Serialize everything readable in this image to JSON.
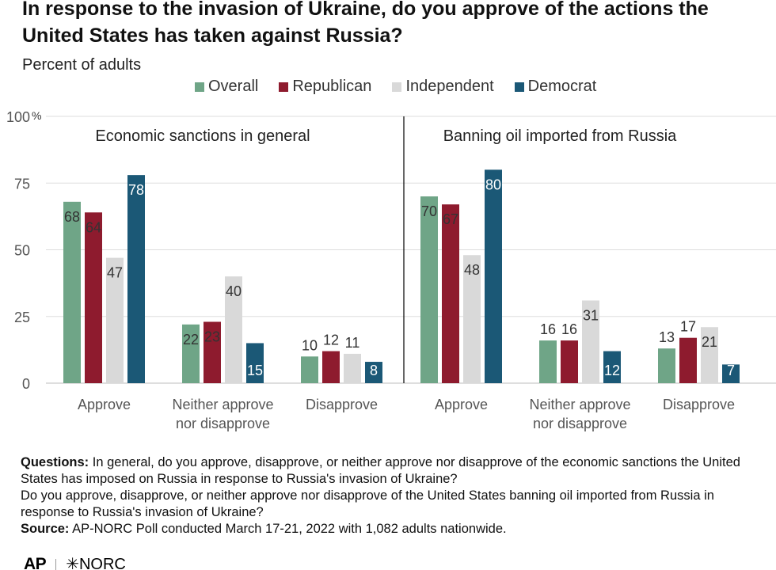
{
  "title": "In response to the invasion of Ukraine, do you approve of the actions the United States has taken against Russia?",
  "subtitle": "Percent of adults",
  "legend": [
    {
      "label": "Overall",
      "color": "#6fa587"
    },
    {
      "label": "Republican",
      "color": "#8e1b2e"
    },
    {
      "label": "Independent",
      "color": "#d9d9d9"
    },
    {
      "label": "Democrat",
      "color": "#1b5876"
    }
  ],
  "chart_data": [
    {
      "type": "bar",
      "title": "Economic sanctions in general",
      "categories": [
        "Approve",
        "Neither approve nor disapprove",
        "Disapprove"
      ],
      "series": [
        {
          "name": "Overall",
          "values": [
            68,
            22,
            10
          ]
        },
        {
          "name": "Republican",
          "values": [
            64,
            23,
            12
          ]
        },
        {
          "name": "Independent",
          "values": [
            47,
            40,
            11
          ]
        },
        {
          "name": "Democrat",
          "values": [
            78,
            15,
            8
          ]
        }
      ],
      "ylim": [
        0,
        100
      ],
      "yticks": [
        "0",
        "25",
        "50",
        "75",
        "100"
      ],
      "ytick_unit": "%",
      "grid": true
    },
    {
      "type": "bar",
      "title": "Banning oil imported from Russia",
      "categories": [
        "Approve",
        "Neither approve nor disapprove",
        "Disapprove"
      ],
      "series": [
        {
          "name": "Overall",
          "values": [
            70,
            16,
            13
          ]
        },
        {
          "name": "Republican",
          "values": [
            67,
            16,
            17
          ]
        },
        {
          "name": "Independent",
          "values": [
            48,
            31,
            21
          ]
        },
        {
          "name": "Democrat",
          "values": [
            80,
            12,
            7
          ]
        }
      ],
      "ylim": [
        0,
        100
      ],
      "grid": true
    }
  ],
  "category_labels": [
    [
      "Approve"
    ],
    [
      "Neither approve",
      "nor disapprove"
    ],
    [
      "Disapprove"
    ]
  ],
  "notes": {
    "questions_label": "Questions:",
    "questions_text": " In general, do you approve, disapprove, or neither approve nor disapprove of the economic sanctions the United States has imposed on Russia in response to Russia's invasion of Ukraine?",
    "question2_text": "Do you approve, disapprove, or neither approve nor disapprove of the United States banning oil imported from Russia in response to Russia's invasion of Ukraine?",
    "source_label": "Source:",
    "source_text": " AP-NORC Poll conducted March 17-21, 2022 with 1,082 adults nationwide."
  },
  "logos": {
    "ap": "AP",
    "norc": "✳NORC"
  }
}
